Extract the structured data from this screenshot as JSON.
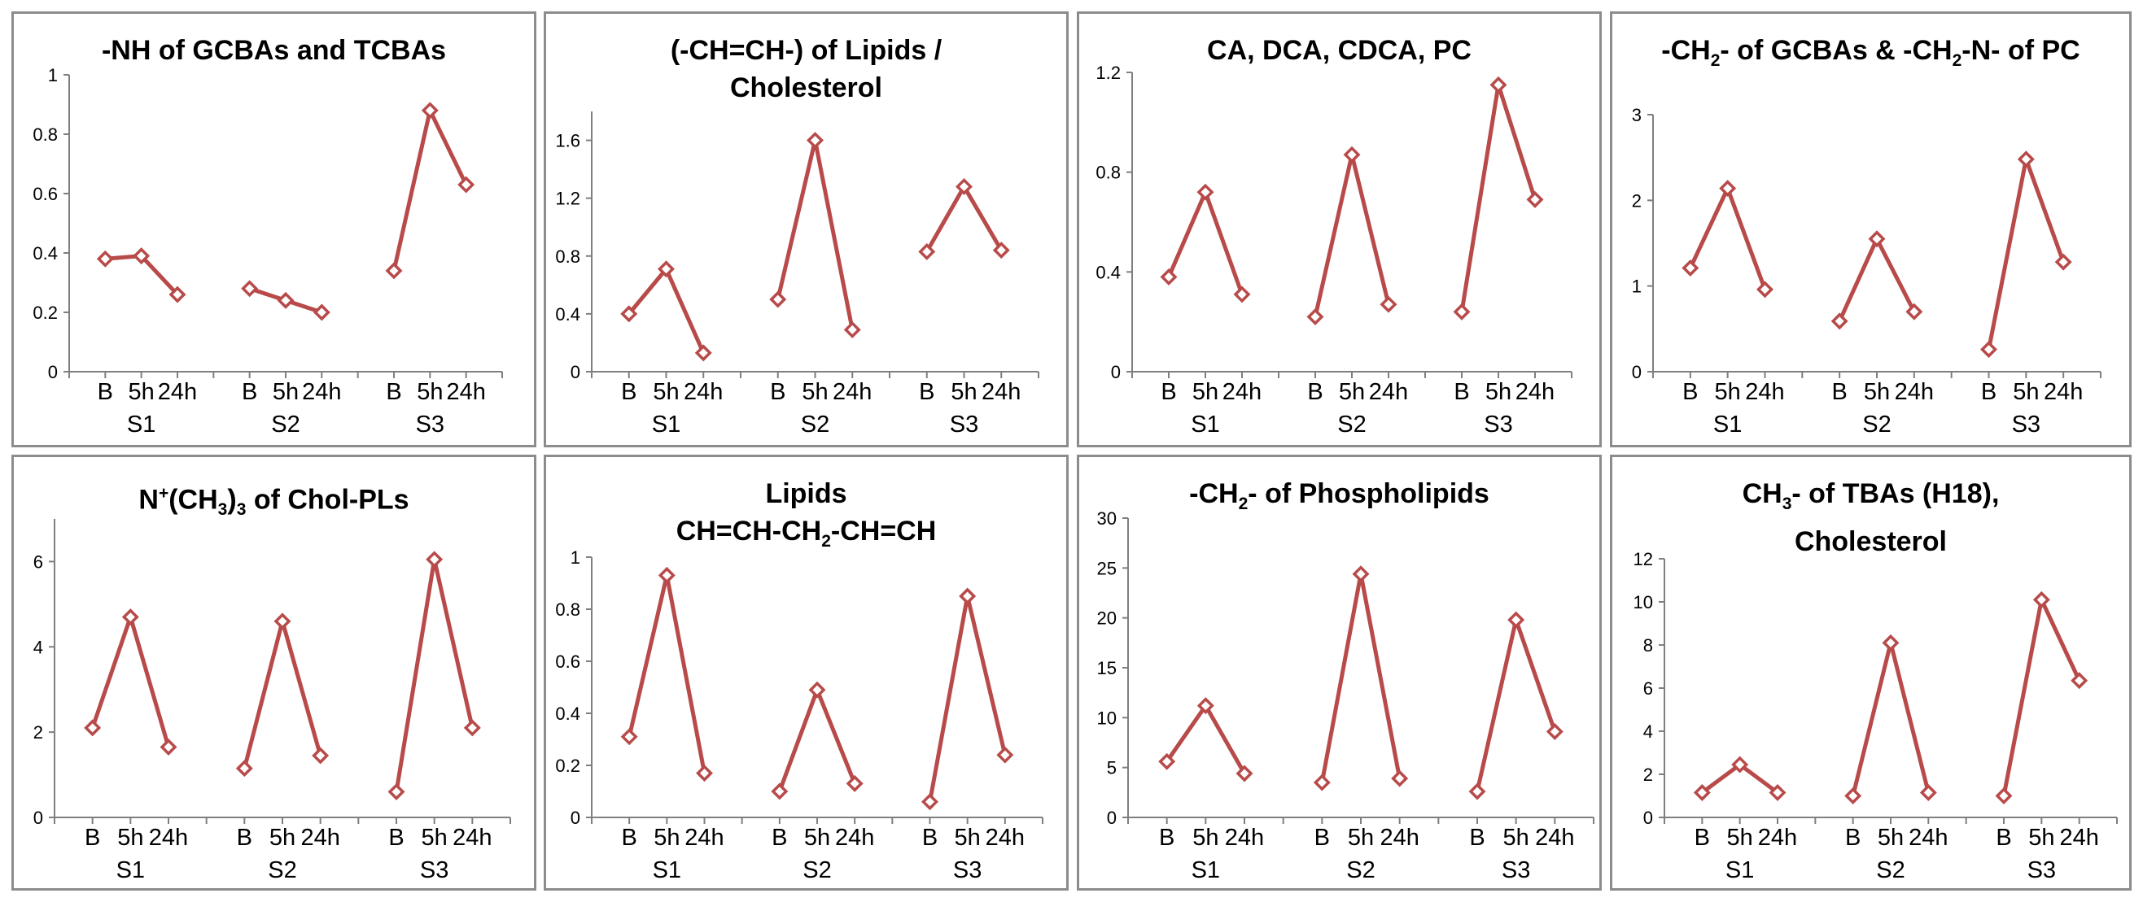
{
  "chart_data": [
    {
      "type": "line",
      "title_html": "-NH of GCBAs and TCBAs",
      "categories": [
        "B",
        "5h",
        "24h"
      ],
      "groups": [
        "S1",
        "S2",
        "S3"
      ],
      "ylim": [
        0,
        1
      ],
      "yticks": [
        "0",
        "0.2",
        "0.4",
        "0.6",
        "0.8",
        "1"
      ],
      "series": [
        {
          "name": "S1",
          "values": [
            0.38,
            0.39,
            0.26
          ]
        },
        {
          "name": "S2",
          "values": [
            0.28,
            0.24,
            0.2
          ]
        },
        {
          "name": "S3",
          "values": [
            0.34,
            0.88,
            0.63
          ]
        }
      ],
      "xlabel": "",
      "ylabel": ""
    },
    {
      "type": "line",
      "title_html": "(-CH=CH-) of Lipids /<br>Cholesterol",
      "categories": [
        "B",
        "5h",
        "24h"
      ],
      "groups": [
        "S1",
        "S2",
        "S3"
      ],
      "ylim": [
        0,
        1.8
      ],
      "yticks": [
        "0",
        "0.4",
        "0.8",
        "1.2",
        "1.6"
      ],
      "series": [
        {
          "name": "S1",
          "values": [
            0.4,
            0.71,
            0.13
          ]
        },
        {
          "name": "S2",
          "values": [
            0.5,
            1.6,
            0.29
          ]
        },
        {
          "name": "S3",
          "values": [
            0.83,
            1.28,
            0.84
          ]
        }
      ],
      "xlabel": "",
      "ylabel": ""
    },
    {
      "type": "line",
      "title_html": "CA, DCA, CDCA, PC",
      "categories": [
        "B",
        "5h",
        "24h"
      ],
      "groups": [
        "S1",
        "S2",
        "S3"
      ],
      "ylim": [
        0,
        1.2
      ],
      "yticks": [
        "0",
        "0.4",
        "0.8",
        "1.2"
      ],
      "series": [
        {
          "name": "S1",
          "values": [
            0.38,
            0.72,
            0.31
          ]
        },
        {
          "name": "S2",
          "values": [
            0.22,
            0.87,
            0.27
          ]
        },
        {
          "name": "S3",
          "values": [
            0.24,
            1.15,
            0.69
          ]
        }
      ],
      "xlabel": "",
      "ylabel": ""
    },
    {
      "type": "line",
      "title_html": "-CH<sub>2</sub>- of GCBAs &amp; -CH<sub>2</sub>-N- of PC",
      "categories": [
        "B",
        "5h",
        "24h"
      ],
      "groups": [
        "S1",
        "S2",
        "S3"
      ],
      "ylim": [
        0,
        3
      ],
      "yticks": [
        "0",
        "1",
        "2",
        "3"
      ],
      "series": [
        {
          "name": "S1",
          "values": [
            1.21,
            2.14,
            0.96
          ]
        },
        {
          "name": "S2",
          "values": [
            0.59,
            1.55,
            0.7
          ]
        },
        {
          "name": "S3",
          "values": [
            0.26,
            2.48,
            1.28
          ]
        }
      ],
      "xlabel": "",
      "ylabel": ""
    },
    {
      "type": "line",
      "title_html": "N<sup>+</sup>(CH<sub>3</sub>)<sub>3</sub> of Chol-PLs",
      "categories": [
        "B",
        "5h",
        "24h"
      ],
      "groups": [
        "S1",
        "S2",
        "S3"
      ],
      "ylim": [
        0,
        7
      ],
      "yticks": [
        "0",
        "2",
        "4",
        "6"
      ],
      "series": [
        {
          "name": "S1",
          "values": [
            2.1,
            4.7,
            1.65
          ]
        },
        {
          "name": "S2",
          "values": [
            1.15,
            4.6,
            1.45
          ]
        },
        {
          "name": "S3",
          "values": [
            0.6,
            6.05,
            2.1
          ]
        }
      ],
      "xlabel": "",
      "ylabel": ""
    },
    {
      "type": "line",
      "title_html": "Lipids<br>CH=CH-CH<sub>2</sub>-CH=CH",
      "categories": [
        "B",
        "5h",
        "24h"
      ],
      "groups": [
        "S1",
        "S2",
        "S3"
      ],
      "ylim": [
        0,
        1
      ],
      "yticks": [
        "0",
        "0.2",
        "0.4",
        "0.6",
        "0.8",
        "1"
      ],
      "series": [
        {
          "name": "S1",
          "values": [
            0.31,
            0.93,
            0.17
          ]
        },
        {
          "name": "S2",
          "values": [
            0.1,
            0.49,
            0.13
          ]
        },
        {
          "name": "S3",
          "values": [
            0.06,
            0.85,
            0.24
          ]
        }
      ],
      "xlabel": "",
      "ylabel": ""
    },
    {
      "type": "line",
      "title_html": "-CH<sub>2</sub>- of Phospholipids",
      "categories": [
        "B",
        "5h",
        "24h"
      ],
      "groups": [
        "S1",
        "S2",
        "S3"
      ],
      "ylim": [
        0,
        30
      ],
      "yticks": [
        "0",
        "5",
        "10",
        "15",
        "20",
        "25",
        "30"
      ],
      "series": [
        {
          "name": "S1",
          "values": [
            5.6,
            11.2,
            4.4
          ]
        },
        {
          "name": "S2",
          "values": [
            3.5,
            24.4,
            3.9
          ]
        },
        {
          "name": "S3",
          "values": [
            2.6,
            19.8,
            8.6
          ]
        }
      ],
      "xlabel": "",
      "ylabel": ""
    },
    {
      "type": "line",
      "title_html": "CH<sub>3</sub>- of TBAs (H18),<br>Cholesterol",
      "categories": [
        "B",
        "5h",
        "24h"
      ],
      "groups": [
        "S1",
        "S2",
        "S3"
      ],
      "ylim": [
        0,
        12
      ],
      "yticks": [
        "0",
        "2",
        "4",
        "6",
        "8",
        "10",
        "12"
      ],
      "series": [
        {
          "name": "S1",
          "values": [
            1.15,
            2.45,
            1.15
          ]
        },
        {
          "name": "S2",
          "values": [
            1.0,
            8.1,
            1.15
          ]
        },
        {
          "name": "S3",
          "values": [
            1.0,
            10.1,
            6.35
          ]
        }
      ],
      "xlabel": "",
      "ylabel": ""
    }
  ],
  "style": {
    "line_color": "#b84a4a",
    "marker_fill": "#ffffff",
    "axis_color": "#7f7f7f",
    "border_color": "#8c8c8c"
  }
}
